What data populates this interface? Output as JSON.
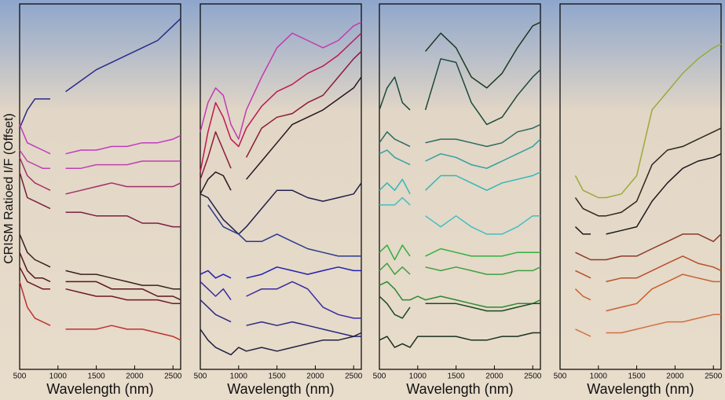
{
  "chart_data": [
    {
      "type": "line",
      "x_label": "Wavelength (nm)",
      "y_label": "CRISM Ratioed I/F (Offset)",
      "x": [
        500,
        600,
        700,
        800,
        900,
        1000,
        1100,
        1300,
        1500,
        1700,
        1900,
        2100,
        2300,
        2500,
        2600
      ],
      "xlim": [
        500,
        2600
      ],
      "ylim": [
        0,
        100
      ],
      "xticks": [
        500,
        1000,
        1500,
        2000,
        2500
      ],
      "series": [
        {
          "color": "#2a2a8a",
          "values": [
            66,
            71,
            74,
            74,
            74,
            null,
            76,
            79,
            82,
            84,
            86,
            88,
            90,
            94,
            96
          ]
        },
        {
          "color": "#c03cc0",
          "values": [
            67,
            62,
            61,
            60,
            59,
            null,
            59,
            60,
            60,
            61,
            61,
            62,
            62,
            63,
            64
          ]
        },
        {
          "color": "#c040b0",
          "values": [
            60,
            57,
            56,
            55,
            55,
            null,
            55,
            55,
            56,
            56,
            56,
            57,
            57,
            57,
            57
          ]
        },
        {
          "color": "#a0306a",
          "values": [
            58,
            53,
            51,
            50,
            49,
            null,
            48,
            49,
            50,
            51,
            50,
            50,
            50,
            50,
            51
          ]
        },
        {
          "color": "#7a2040",
          "values": [
            54,
            47,
            46,
            45,
            44,
            null,
            43,
            43,
            42,
            42,
            42,
            40,
            40,
            39,
            39
          ]
        },
        {
          "color": "#3a2020",
          "values": [
            37,
            32,
            30,
            29,
            28,
            null,
            27,
            26,
            26,
            25,
            24,
            23,
            23,
            22,
            22
          ]
        },
        {
          "color": "#5a1520",
          "values": [
            32,
            27,
            25,
            25,
            24,
            null,
            24,
            24,
            24,
            22,
            22,
            22,
            20,
            20,
            19
          ]
        },
        {
          "color": "#701828",
          "values": [
            28,
            24,
            23,
            22,
            22,
            null,
            22,
            21,
            20,
            20,
            19,
            19,
            19,
            18,
            18
          ]
        },
        {
          "color": "#c03030",
          "values": [
            24,
            17,
            14,
            13,
            12,
            null,
            11,
            11,
            11,
            12,
            11,
            11,
            10,
            9,
            8
          ]
        }
      ]
    },
    {
      "type": "line",
      "x_label": "Wavelength (nm)",
      "x": [
        500,
        600,
        700,
        800,
        900,
        1000,
        1100,
        1300,
        1500,
        1700,
        1900,
        2100,
        2300,
        2500,
        2600
      ],
      "xlim": [
        500,
        2600
      ],
      "ylim": [
        0,
        100
      ],
      "xticks": [
        500,
        1000,
        1500,
        2000,
        2500
      ],
      "series": [
        {
          "color": "#c03cb0",
          "values": [
            65,
            73,
            77,
            75,
            67,
            63,
            71,
            80,
            88,
            92,
            90,
            88,
            90,
            94,
            95
          ]
        },
        {
          "color": "#c01850",
          "values": [
            54,
            65,
            73,
            69,
            63,
            61,
            66,
            72,
            76,
            78,
            81,
            83,
            86,
            90,
            92
          ]
        },
        {
          "color": "#8a1a3a",
          "values": [
            52,
            58,
            65,
            60,
            55,
            null,
            58,
            66,
            69,
            70,
            73,
            75,
            80,
            85,
            87
          ]
        },
        {
          "color": "#2a1520",
          "values": [
            48,
            52,
            54,
            53,
            49,
            null,
            52,
            57,
            62,
            67,
            69,
            71,
            74,
            77,
            80
          ]
        },
        {
          "color": "#20204a",
          "values": [
            48,
            47,
            44,
            41,
            39,
            37,
            39,
            44,
            49,
            49,
            47,
            46,
            47,
            48,
            51
          ]
        },
        {
          "color": "#2a3a8a",
          "values": [
            null,
            45,
            42,
            39,
            38,
            37,
            35,
            35,
            37,
            35,
            33,
            32,
            31,
            31,
            31
          ]
        },
        {
          "color": "#2020b0",
          "values": [
            26,
            27,
            25,
            26,
            25,
            null,
            25,
            26,
            28,
            27,
            26,
            27,
            28,
            27,
            27
          ]
        },
        {
          "color": "#3a2aa0",
          "values": [
            24,
            22,
            20,
            22,
            19,
            null,
            20,
            22,
            22,
            24,
            22,
            17,
            15,
            14,
            14
          ]
        },
        {
          "color": "#2a2a80",
          "values": [
            19,
            17,
            15,
            14,
            13,
            null,
            12,
            13,
            12,
            13,
            12,
            11,
            10,
            9,
            9
          ]
        },
        {
          "color": "#202040",
          "values": [
            11,
            8,
            6,
            5,
            4,
            6,
            5,
            6,
            5,
            6,
            7,
            8,
            8,
            9,
            10
          ]
        }
      ]
    },
    {
      "type": "line",
      "x_label": "Wavelength (nm)",
      "x": [
        500,
        600,
        700,
        800,
        900,
        1000,
        1100,
        1300,
        1500,
        1700,
        1900,
        2100,
        2300,
        2500,
        2600
      ],
      "xlim": [
        500,
        2600
      ],
      "ylim": [
        0,
        100
      ],
      "xticks": [
        500,
        1000,
        1500,
        2000,
        2500
      ],
      "series": [
        {
          "color": "#1a3a20",
          "values": [
            null,
            null,
            null,
            null,
            null,
            null,
            87,
            92,
            88,
            80,
            77,
            81,
            88,
            94,
            95
          ]
        },
        {
          "color": "#1a4a3a",
          "values": [
            71,
            77,
            80,
            73,
            71,
            null,
            71,
            85,
            84,
            73,
            67,
            69,
            75,
            80,
            82
          ]
        },
        {
          "color": "#2a6a60",
          "values": [
            62,
            65,
            63,
            62,
            61,
            null,
            62,
            63,
            63,
            62,
            61,
            62,
            65,
            66,
            67
          ]
        },
        {
          "color": "#30a0a0",
          "values": [
            59,
            60,
            58,
            57,
            56,
            null,
            57,
            59,
            58,
            56,
            55,
            57,
            59,
            61,
            63
          ]
        },
        {
          "color": "#30b8b8",
          "values": [
            49,
            51,
            49,
            52,
            48,
            null,
            49,
            53,
            53,
            51,
            49,
            51,
            52,
            53,
            54
          ]
        },
        {
          "color": "#40c0c0",
          "values": [
            45,
            45,
            45,
            47,
            45,
            null,
            42,
            39,
            42,
            39,
            37,
            37,
            39,
            42,
            42
          ]
        },
        {
          "color": "#30b040",
          "values": [
            32,
            34,
            30,
            34,
            31,
            null,
            31,
            33,
            32,
            31,
            31,
            31,
            32,
            32,
            32
          ]
        },
        {
          "color": "#40a040",
          "values": [
            27,
            29,
            26,
            28,
            26,
            null,
            28,
            27,
            28,
            27,
            26,
            26,
            27,
            27,
            28
          ]
        },
        {
          "color": "#2a8a30",
          "values": [
            23,
            24,
            22,
            19,
            19,
            20,
            19,
            20,
            19,
            18,
            17,
            17,
            18,
            18,
            19
          ]
        },
        {
          "color": "#1a4a20",
          "values": [
            20,
            18,
            15,
            14,
            17,
            null,
            18,
            18,
            18,
            17,
            16,
            16,
            17,
            18,
            18
          ]
        },
        {
          "color": "#1a3020",
          "values": [
            8,
            9,
            6,
            7,
            6,
            9,
            9,
            9,
            9,
            8,
            8,
            9,
            9,
            10,
            10
          ]
        }
      ]
    },
    {
      "type": "line",
      "x_label": "Wavelength (nm)",
      "x": [
        500,
        600,
        700,
        800,
        900,
        1000,
        1100,
        1300,
        1500,
        1700,
        1900,
        2100,
        2300,
        2500,
        2600
      ],
      "xlim": [
        500,
        2600
      ],
      "ylim": [
        0,
        100
      ],
      "xticks": [
        500,
        1000,
        1500,
        2000,
        2500
      ],
      "series": [
        {
          "color": "#9aaa3a",
          "values": [
            null,
            null,
            53,
            49,
            48,
            47,
            47,
            48,
            53,
            71,
            76,
            81,
            85,
            88,
            89
          ]
        },
        {
          "color": "#2a2a18",
          "values": [
            null,
            null,
            47,
            44,
            43,
            42,
            42,
            43,
            46,
            56,
            60,
            61,
            63,
            65,
            66
          ]
        },
        {
          "color": "#1a1a1a",
          "values": [
            null,
            null,
            39,
            37,
            37,
            null,
            37,
            38,
            39,
            46,
            51,
            55,
            57,
            58,
            59
          ]
        },
        {
          "color": "#8a3a2a",
          "values": [
            null,
            null,
            32,
            31,
            30,
            30,
            30,
            31,
            31,
            33,
            35,
            37,
            37,
            35,
            37
          ]
        },
        {
          "color": "#b8502a",
          "values": [
            null,
            null,
            27,
            26,
            25,
            null,
            24,
            25,
            25,
            27,
            29,
            31,
            29,
            28,
            27
          ]
        },
        {
          "color": "#c86030",
          "values": [
            null,
            null,
            22,
            20,
            19,
            null,
            16,
            17,
            18,
            22,
            24,
            26,
            25,
            24,
            24
          ]
        },
        {
          "color": "#d07040",
          "values": [
            null,
            null,
            11,
            10,
            9,
            null,
            10,
            10,
            11,
            12,
            13,
            13,
            14,
            15,
            15
          ]
        }
      ]
    }
  ]
}
